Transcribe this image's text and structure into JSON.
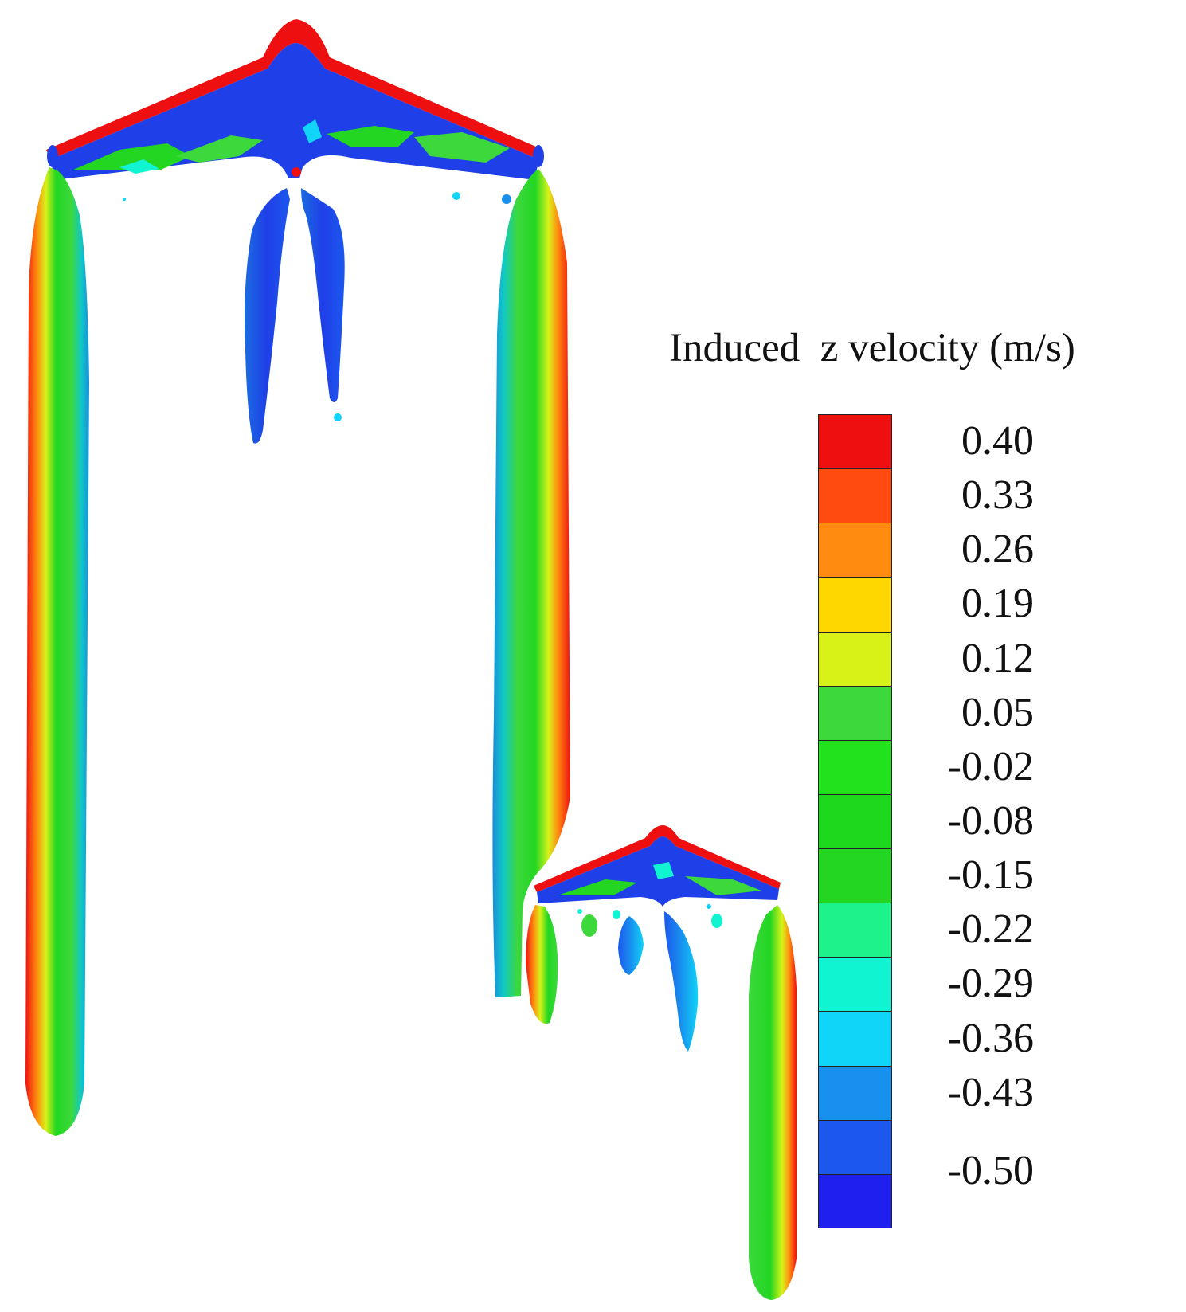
{
  "legend": {
    "title": "Induced  z velocity (m/s)",
    "tick_labels": [
      "0.40",
      "0.33",
      "0.26",
      "0.19",
      "0.12",
      "0.05",
      "-0.02",
      "-0.08",
      "-0.15",
      "-0.22",
      "-0.29",
      "-0.36",
      "-0.43",
      "-0.50"
    ],
    "band_colors": [
      "#ee1010",
      "#ff4a10",
      "#ff8c10",
      "#ffd700",
      "#d8f218",
      "#3cd83c",
      "#22e21e",
      "#1ed81e",
      "#22d622",
      "#1ef28a",
      "#10f4d2",
      "#10d4f8",
      "#1890ee",
      "#1c58ee",
      "#1f1fee"
    ]
  },
  "colors": {
    "high": "#ee1010",
    "mid": "#22d622",
    "low": "#1f3fe8",
    "background": "#ffffff"
  }
}
